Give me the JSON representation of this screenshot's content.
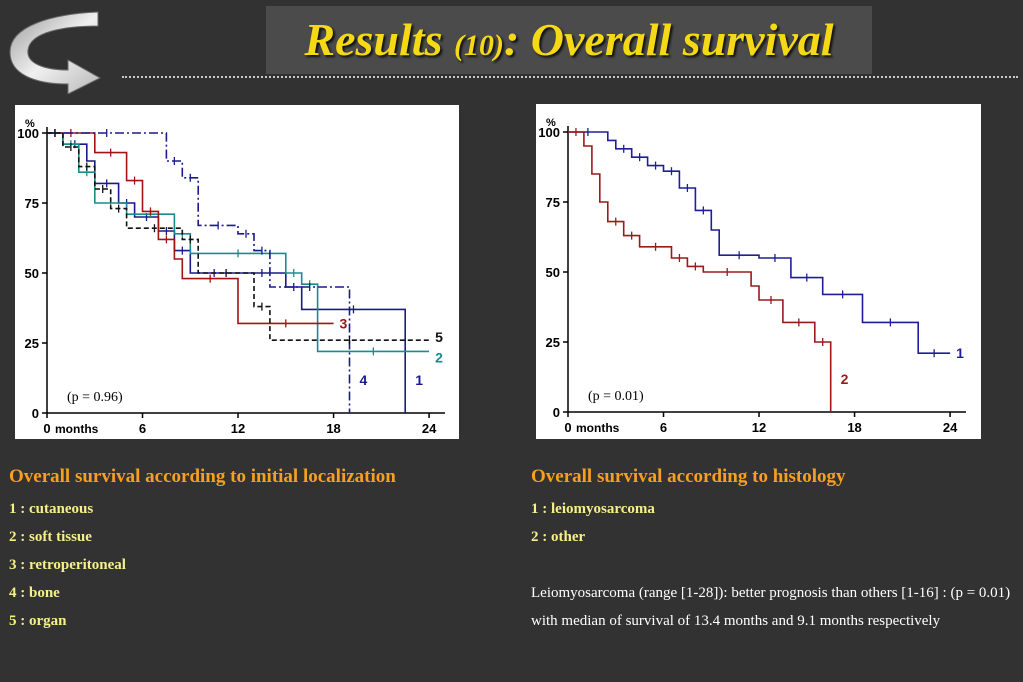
{
  "slide": {
    "title_main": "Results",
    "title_number": "(10)",
    "title_rest": ": Overall survival"
  },
  "colors": {
    "background": "#323232",
    "title": "#f5d915",
    "caption": "#f5a020",
    "legend": "#f5f088",
    "curve_blue": "#1a1a8c",
    "curve_red": "#a01414",
    "curve_teal": "#1a8c8c",
    "curve_black": "#111111",
    "curve_navy": "#1e1e9a",
    "curve_maroon": "#9a1a1a"
  },
  "chart_data": [
    {
      "type": "line",
      "ylabel": "%",
      "xlabel": "months",
      "x_ticks": [
        "0",
        "6",
        "12",
        "18",
        "24"
      ],
      "y_ticks": [
        "0",
        "25",
        "50",
        "75",
        "100"
      ],
      "xlim": [
        0,
        25
      ],
      "ylim": [
        0,
        100
      ],
      "annotation": "(p = 0.96)",
      "series": [
        {
          "name": "1",
          "style": "solid",
          "color": "#1a1a8c",
          "points": [
            [
              0,
              100
            ],
            [
              1,
              100
            ],
            [
              1,
              96
            ],
            [
              2.5,
              96
            ],
            [
              2.5,
              90
            ],
            [
              3,
              90
            ],
            [
              3,
              82
            ],
            [
              4.5,
              82
            ],
            [
              4.5,
              75
            ],
            [
              5.5,
              75
            ],
            [
              5.5,
              70
            ],
            [
              7,
              70
            ],
            [
              7,
              65
            ],
            [
              8,
              65
            ],
            [
              8,
              58
            ],
            [
              9,
              58
            ],
            [
              9,
              50
            ],
            [
              12,
              50
            ],
            [
              12,
              50
            ],
            [
              15,
              50
            ],
            [
              15,
              45
            ],
            [
              16,
              45
            ],
            [
              16,
              37
            ],
            [
              22.5,
              37
            ],
            [
              22.5,
              0
            ]
          ]
        },
        {
          "name": "2",
          "style": "solid",
          "color": "#1a8c8c",
          "points": [
            [
              0,
              100
            ],
            [
              1,
              100
            ],
            [
              1,
              96
            ],
            [
              2,
              96
            ],
            [
              2,
              86
            ],
            [
              3,
              86
            ],
            [
              3,
              75
            ],
            [
              5,
              75
            ],
            [
              5,
              71
            ],
            [
              8,
              71
            ],
            [
              8,
              64
            ],
            [
              9,
              64
            ],
            [
              9,
              57
            ],
            [
              15,
              57
            ],
            [
              15,
              50
            ],
            [
              16,
              50
            ],
            [
              16,
              46
            ],
            [
              17,
              46
            ],
            [
              17,
              22
            ],
            [
              24,
              22
            ]
          ]
        },
        {
          "name": "3",
          "style": "solid",
          "color": "#a01414",
          "points": [
            [
              0,
              100
            ],
            [
              3,
              100
            ],
            [
              3,
              93
            ],
            [
              5,
              93
            ],
            [
              5,
              83
            ],
            [
              6,
              83
            ],
            [
              6,
              72
            ],
            [
              7,
              72
            ],
            [
              7,
              62
            ],
            [
              8,
              62
            ],
            [
              8,
              55
            ],
            [
              8.5,
              55
            ],
            [
              8.5,
              48
            ],
            [
              12,
              48
            ],
            [
              12,
              40
            ],
            [
              12,
              32
            ],
            [
              18,
              32
            ]
          ]
        },
        {
          "name": "4",
          "style": "dashdot",
          "color": "#1a1a8c",
          "points": [
            [
              0,
              100
            ],
            [
              7.5,
              100
            ],
            [
              7.5,
              90
            ],
            [
              8.5,
              90
            ],
            [
              8.5,
              84
            ],
            [
              9.5,
              84
            ],
            [
              9.5,
              67
            ],
            [
              12,
              67
            ],
            [
              12,
              64
            ],
            [
              13,
              64
            ],
            [
              13,
              58
            ],
            [
              14,
              58
            ],
            [
              14,
              45
            ],
            [
              19,
              45
            ],
            [
              19,
              0
            ]
          ]
        },
        {
          "name": "5",
          "style": "dashed",
          "color": "#111111",
          "points": [
            [
              0,
              100
            ],
            [
              1,
              100
            ],
            [
              1,
              95
            ],
            [
              2,
              95
            ],
            [
              2,
              88
            ],
            [
              3,
              88
            ],
            [
              3,
              80
            ],
            [
              4,
              80
            ],
            [
              4,
              73
            ],
            [
              5,
              73
            ],
            [
              5,
              66
            ],
            [
              8.5,
              66
            ],
            [
              8.5,
              62
            ],
            [
              9.5,
              62
            ],
            [
              9.5,
              50
            ],
            [
              13,
              50
            ],
            [
              13,
              38
            ],
            [
              14,
              38
            ],
            [
              14,
              26
            ],
            [
              24,
              26
            ]
          ]
        }
      ]
    },
    {
      "type": "line",
      "ylabel": "%",
      "xlabel": "months",
      "x_ticks": [
        "0",
        "6",
        "12",
        "18",
        "24"
      ],
      "y_ticks": [
        "0",
        "25",
        "50",
        "75",
        "100"
      ],
      "xlim": [
        0,
        25
      ],
      "ylim": [
        0,
        100
      ],
      "annotation": "(p = 0.01)",
      "series": [
        {
          "name": "1",
          "style": "solid",
          "color": "#1e1e9a",
          "points": [
            [
              0,
              100
            ],
            [
              2.5,
              100
            ],
            [
              2.5,
              97
            ],
            [
              3,
              97
            ],
            [
              3,
              94
            ],
            [
              4,
              94
            ],
            [
              4,
              91
            ],
            [
              5,
              91
            ],
            [
              5,
              88
            ],
            [
              6,
              88
            ],
            [
              6,
              86
            ],
            [
              7,
              86
            ],
            [
              7,
              80
            ],
            [
              8,
              80
            ],
            [
              8,
              72
            ],
            [
              9,
              72
            ],
            [
              9,
              65
            ],
            [
              9.5,
              65
            ],
            [
              9.5,
              56
            ],
            [
              12,
              56
            ],
            [
              12,
              55
            ],
            [
              14,
              55
            ],
            [
              14,
              48
            ],
            [
              16,
              48
            ],
            [
              16,
              42
            ],
            [
              18.5,
              42
            ],
            [
              18.5,
              32
            ],
            [
              22,
              32
            ],
            [
              22,
              21
            ],
            [
              24,
              21
            ]
          ]
        },
        {
          "name": "2",
          "style": "solid",
          "color": "#9a1a1a",
          "points": [
            [
              0,
              100
            ],
            [
              1,
              100
            ],
            [
              1,
              95
            ],
            [
              1.5,
              95
            ],
            [
              1.5,
              85
            ],
            [
              2,
              85
            ],
            [
              2,
              75
            ],
            [
              2.5,
              75
            ],
            [
              2.5,
              68
            ],
            [
              3.5,
              68
            ],
            [
              3.5,
              63
            ],
            [
              4.5,
              63
            ],
            [
              4.5,
              59
            ],
            [
              6.5,
              59
            ],
            [
              6.5,
              55
            ],
            [
              7.5,
              55
            ],
            [
              7.5,
              52
            ],
            [
              8.5,
              52
            ],
            [
              8.5,
              50
            ],
            [
              11.5,
              50
            ],
            [
              11.5,
              45
            ],
            [
              12,
              45
            ],
            [
              12,
              40
            ],
            [
              13.5,
              40
            ],
            [
              13.5,
              32
            ],
            [
              15.5,
              32
            ],
            [
              15.5,
              25
            ],
            [
              16.5,
              25
            ],
            [
              16.5,
              0
            ]
          ]
        }
      ]
    }
  ],
  "captions": {
    "left": "Overall survival according to initial localization",
    "right": "Overall survival according to histology"
  },
  "legend_left": [
    "1 : cutaneous",
    "2 : soft tissue",
    "3 : retroperitoneal",
    "4 : bone",
    "5 : organ"
  ],
  "legend_right": [
    "1 : leiomyosarcoma",
    "2 : other"
  ],
  "note": "Leiomyosarcoma (range [1-28]): better prognosis than others [1-16] : (p = 0.01) with median of survival of 13.4 months and 9.1 months respectively"
}
